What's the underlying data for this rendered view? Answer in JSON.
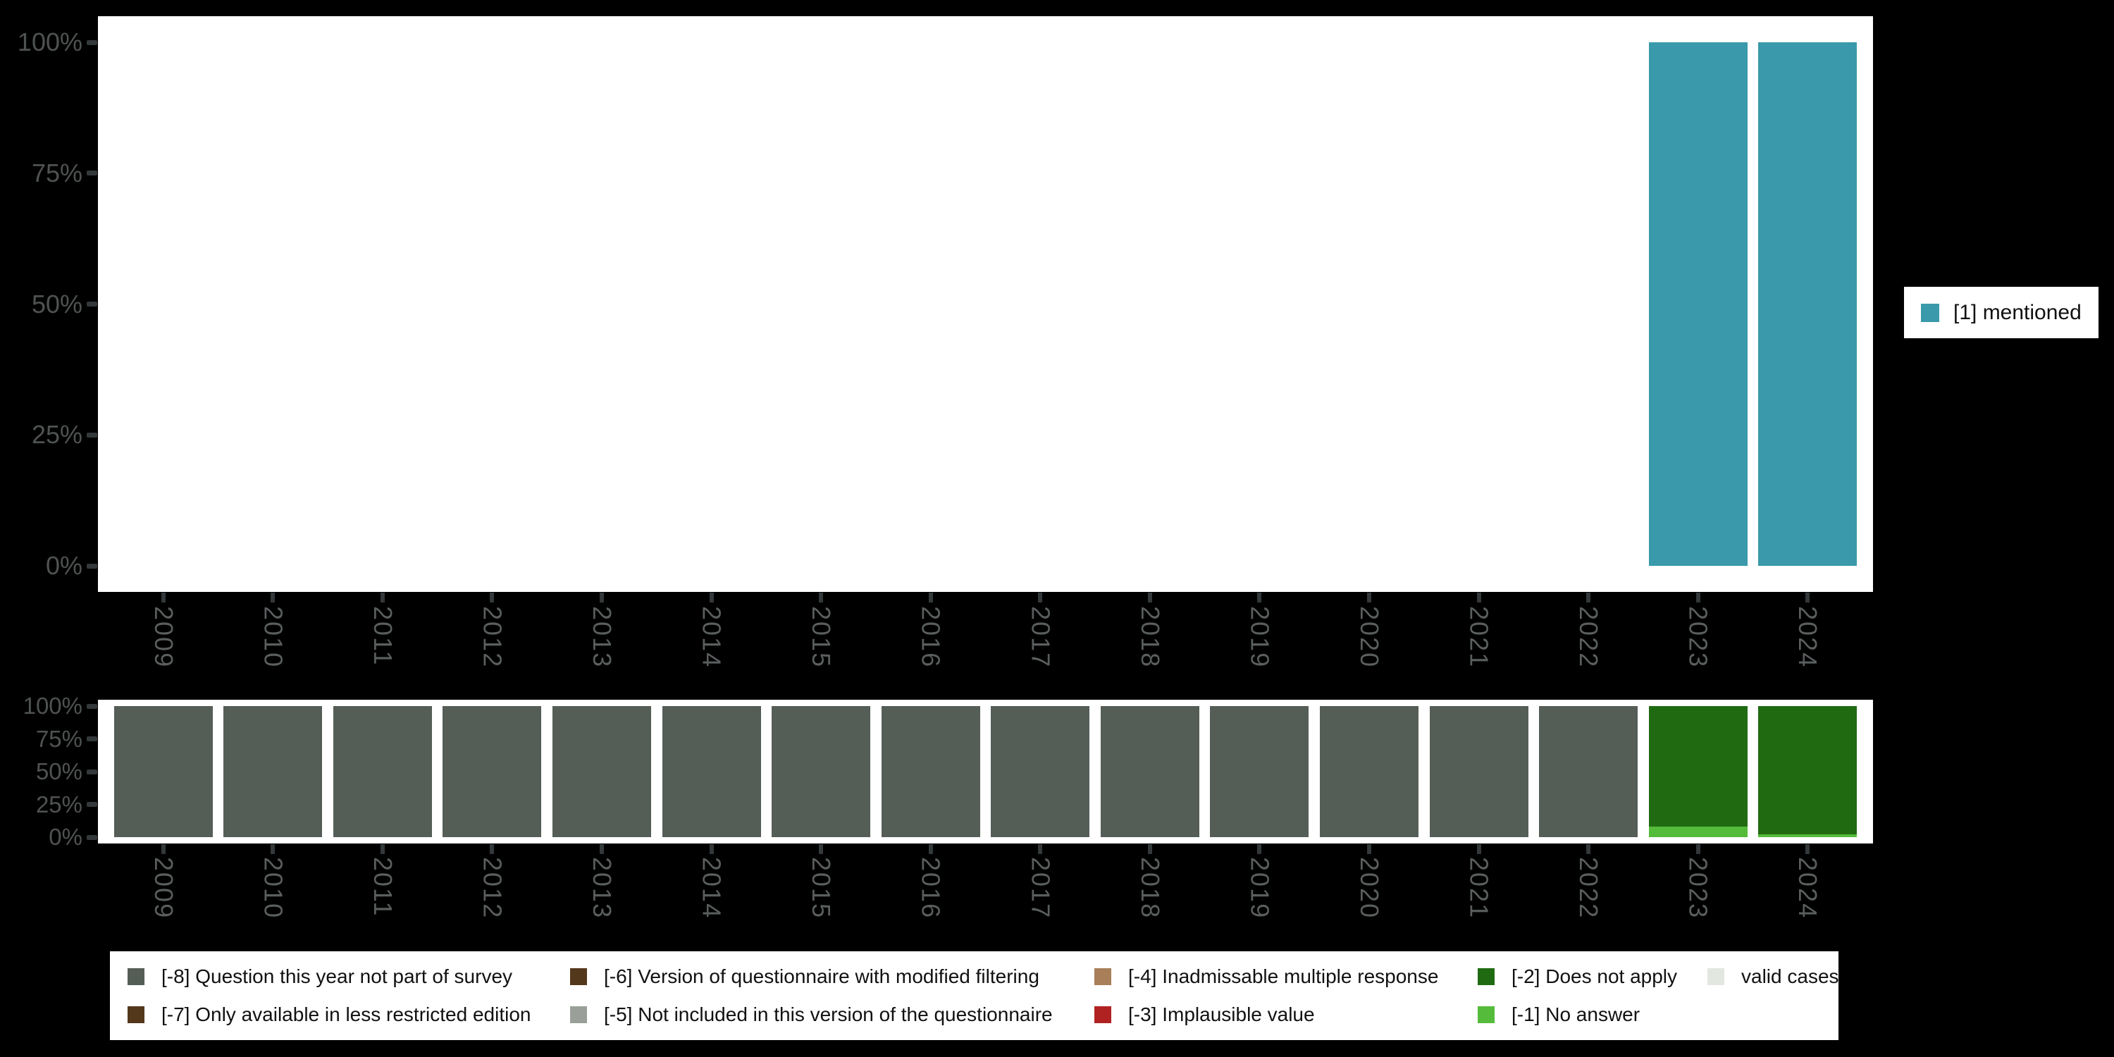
{
  "page": {
    "background": "#000000",
    "plot_background": "#ffffff"
  },
  "axis": {
    "tick_color": "#33383a",
    "y_label_color": "#4f5252",
    "x_label_color": "#5a5e5e"
  },
  "years": [
    "2009",
    "2010",
    "2011",
    "2012",
    "2013",
    "2014",
    "2015",
    "2016",
    "2017",
    "2018",
    "2019",
    "2020",
    "2021",
    "2022",
    "2023",
    "2024"
  ],
  "main_legend": {
    "label": "[1] mentioned",
    "color": "#3a99ab"
  },
  "chart_data": [
    {
      "type": "bar",
      "title": "",
      "categories": [
        "2009",
        "2010",
        "2011",
        "2012",
        "2013",
        "2014",
        "2015",
        "2016",
        "2017",
        "2018",
        "2019",
        "2020",
        "2021",
        "2022",
        "2023",
        "2024"
      ],
      "series": [
        {
          "name": "[1] mentioned",
          "color": "#3a99ab",
          "values": [
            null,
            null,
            null,
            null,
            null,
            null,
            null,
            null,
            null,
            null,
            null,
            null,
            null,
            null,
            100,
            100
          ]
        }
      ],
      "xlabel": "",
      "ylabel": "",
      "ylim": [
        0,
        100
      ],
      "yticks": [
        {
          "pct": 100,
          "label": "100%"
        },
        {
          "pct": 75,
          "label": "75%"
        },
        {
          "pct": 50,
          "label": "50%"
        },
        {
          "pct": 25,
          "label": "25%"
        },
        {
          "pct": 0,
          "label": "0%"
        }
      ],
      "grid": false,
      "legend_position": "right"
    },
    {
      "type": "bar",
      "stacked": true,
      "title": "",
      "categories": [
        "2009",
        "2010",
        "2011",
        "2012",
        "2013",
        "2014",
        "2015",
        "2016",
        "2017",
        "2018",
        "2019",
        "2020",
        "2021",
        "2022",
        "2023",
        "2024"
      ],
      "series": [
        {
          "name": "[-8] Question this year not part of survey",
          "color": "#555d57",
          "values": [
            100,
            100,
            100,
            100,
            100,
            100,
            100,
            100,
            100,
            100,
            100,
            100,
            100,
            100,
            0,
            0
          ]
        },
        {
          "name": "[-2] Does not apply",
          "color": "#206b12",
          "values": [
            0,
            0,
            0,
            0,
            0,
            0,
            0,
            0,
            0,
            0,
            0,
            0,
            0,
            0,
            92,
            98
          ]
        },
        {
          "name": "[-1] No answer",
          "color": "#55bb3a",
          "values": [
            0,
            0,
            0,
            0,
            0,
            0,
            0,
            0,
            0,
            0,
            0,
            0,
            0,
            0,
            8,
            2
          ]
        }
      ],
      "xlabel": "",
      "ylabel": "",
      "ylim": [
        0,
        100
      ],
      "yticks": [
        {
          "pct": 100,
          "label": "100%"
        },
        {
          "pct": 75,
          "label": "75%"
        },
        {
          "pct": 50,
          "label": "50%"
        },
        {
          "pct": 25,
          "label": "25%"
        },
        {
          "pct": 0,
          "label": "0%"
        }
      ],
      "grid": false,
      "legend_position": "bottom"
    }
  ],
  "missing_legend": {
    "items": [
      {
        "label": "[-8] Question this year not part of survey",
        "color": "#555d57"
      },
      {
        "label": "[-7] Only available in less restricted edition",
        "color": "#54381c"
      },
      {
        "label": "[-6] Version of questionnaire with modified filtering",
        "color": "#54381c"
      },
      {
        "label": "[-5] Not included in this version of the questionnaire",
        "color": "#9aa099"
      },
      {
        "label": "[-4] Inadmissable multiple response",
        "color": "#a87f58"
      },
      {
        "label": "[-3] Implausible value",
        "color": "#b02221"
      },
      {
        "label": "[-2] Does not apply",
        "color": "#206b12"
      },
      {
        "label": "[-1] No answer",
        "color": "#55bb3a"
      },
      {
        "label": "valid cases",
        "color": "#e2e7e0"
      }
    ]
  }
}
